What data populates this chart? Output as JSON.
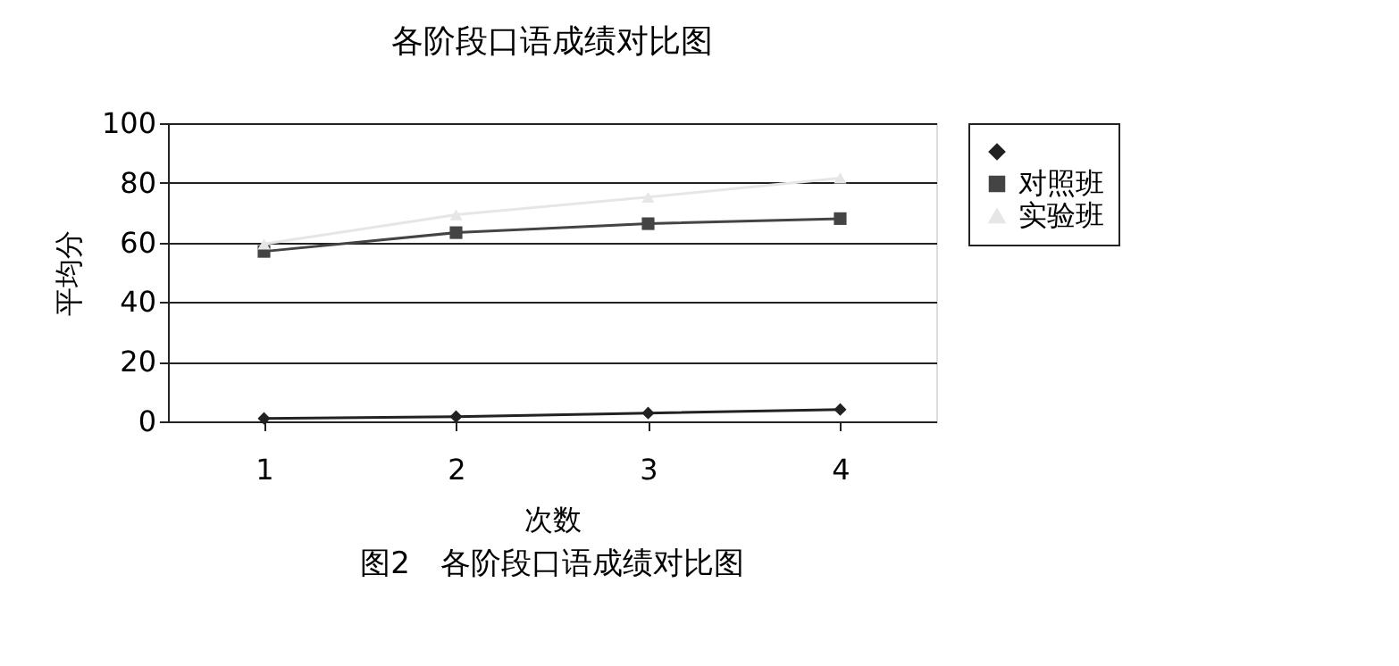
{
  "chart_data": {
    "type": "line",
    "title": "各阶段口语成绩对比图",
    "xlabel": "次数",
    "ylabel": "平均分",
    "categories": [
      "1",
      "2",
      "3",
      "4"
    ],
    "series": [
      {
        "color": "#222222",
        "marker": "diamond",
        "values": [
          1,
          1.6,
          2.8,
          4
        ]
      },
      {
        "name": "对照班",
        "color": "#444444",
        "marker": "square",
        "values": [
          57,
          63.3,
          66.3,
          68
        ]
      },
      {
        "name": "实验班",
        "color": "#e6e6e6",
        "marker": "triangle",
        "values": [
          59.5,
          69.3,
          75.2,
          81.6
        ]
      }
    ],
    "ylim": [
      0,
      100
    ],
    "yticks": [
      0,
      20,
      40,
      60,
      80,
      100
    ],
    "grid": "y",
    "legend": "right",
    "line_style": "solid",
    "annotations": [
      "图2　各阶段口语成绩对比图"
    ]
  }
}
